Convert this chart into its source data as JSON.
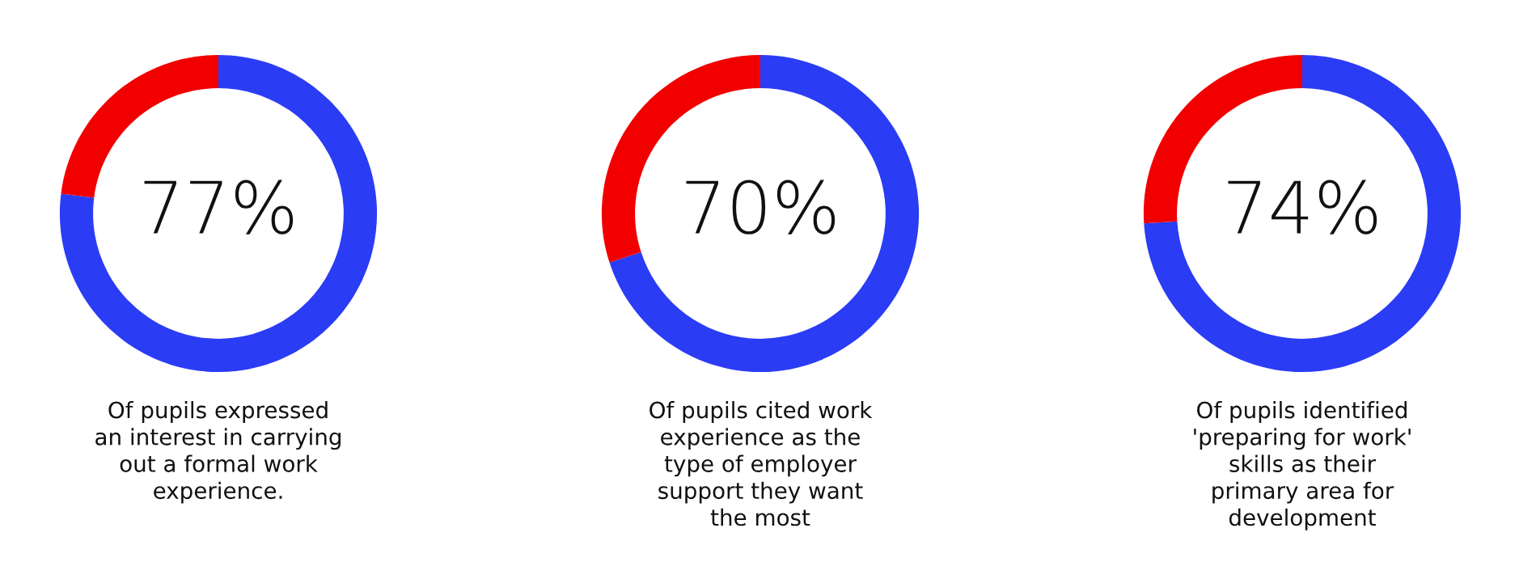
{
  "chart_data": [
    {
      "type": "donut",
      "categories": [
        null,
        null
      ],
      "values": [
        77,
        23
      ],
      "colors": [
        "#2b3cf5",
        "#f20000"
      ],
      "annotations": [
        "77%",
        "Of pupils expressed\nan interest in carrying\nout a formal work\nexperience."
      ]
    },
    {
      "type": "donut",
      "categories": [
        null,
        null
      ],
      "values": [
        70,
        30
      ],
      "colors": [
        "#2b3cf5",
        "#f20000"
      ],
      "annotations": [
        "70%",
        "Of pupils cited work\nexperience as the\ntype of employer\nsupport they want\nthe most"
      ]
    },
    {
      "type": "donut",
      "categories": [
        null,
        null
      ],
      "values": [
        74,
        26
      ],
      "colors": [
        "#2b3cf5",
        "#f20000"
      ],
      "annotations": [
        "74%",
        "Of pupils identified\n'preparing for work'\nskills as their\nprimary area for\ndevelopment"
      ]
    }
  ]
}
